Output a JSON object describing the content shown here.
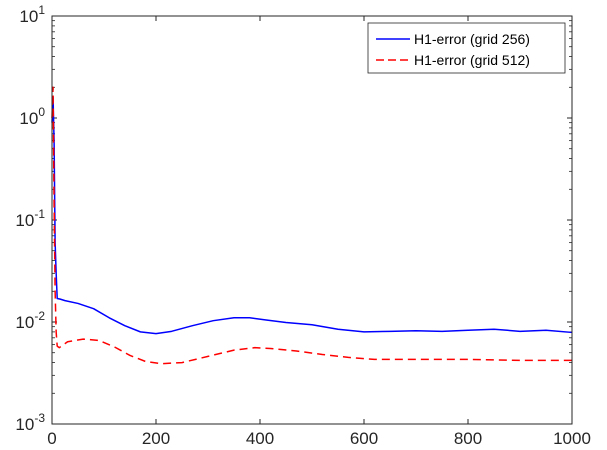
{
  "chart_data": {
    "type": "line",
    "title": "",
    "xlabel": "",
    "ylabel": "",
    "xlim": [
      0,
      1000
    ],
    "ylim": [
      0.001,
      10
    ],
    "yscale": "log",
    "grid": false,
    "legend_position": "top-right",
    "x_ticks": [
      {
        "value": 0,
        "label": "0"
      },
      {
        "value": 200,
        "label": "200"
      },
      {
        "value": 400,
        "label": "400"
      },
      {
        "value": 600,
        "label": "600"
      },
      {
        "value": 800,
        "label": "800"
      },
      {
        "value": 1000,
        "label": "1000"
      }
    ],
    "y_ticks": [
      {
        "value": 0.001,
        "base": "10",
        "exp": "-3"
      },
      {
        "value": 0.01,
        "base": "10",
        "exp": "-2"
      },
      {
        "value": 0.1,
        "base": "10",
        "exp": "-1"
      },
      {
        "value": 1,
        "base": "10",
        "exp": "0"
      },
      {
        "value": 10,
        "base": "10",
        "exp": "1"
      }
    ],
    "series": [
      {
        "name": "H1-error (grid 256)",
        "color": "#0000ff",
        "style": "solid",
        "x": [
          0,
          2,
          4,
          6,
          8,
          10,
          15,
          25,
          50,
          80,
          110,
          140,
          170,
          200,
          230,
          270,
          310,
          350,
          380,
          410,
          450,
          500,
          550,
          600,
          650,
          700,
          750,
          800,
          850,
          900,
          950,
          1000
        ],
        "y": [
          0.9,
          1.6,
          0.6,
          0.06,
          0.03,
          0.017,
          0.0168,
          0.0162,
          0.0152,
          0.0135,
          0.011,
          0.0092,
          0.008,
          0.0077,
          0.0081,
          0.0092,
          0.0103,
          0.011,
          0.011,
          0.0105,
          0.0099,
          0.0094,
          0.0085,
          0.008,
          0.0081,
          0.0082,
          0.0081,
          0.0083,
          0.0085,
          0.0081,
          0.0083,
          0.0079
        ]
      },
      {
        "name": "H1-error (grid 512)",
        "color": "#ff0000",
        "style": "dashed",
        "x": [
          0,
          2,
          4,
          6,
          8,
          10,
          14,
          30,
          60,
          90,
          120,
          150,
          180,
          210,
          250,
          300,
          350,
          390,
          420,
          470,
          520,
          570,
          620,
          700,
          800,
          900,
          1000
        ],
        "y": [
          1.0,
          2.0,
          0.15,
          0.02,
          0.008,
          0.0058,
          0.0056,
          0.0064,
          0.0068,
          0.0066,
          0.0057,
          0.0047,
          0.0041,
          0.0039,
          0.004,
          0.0046,
          0.0053,
          0.0056,
          0.0055,
          0.0052,
          0.0048,
          0.0045,
          0.0043,
          0.0043,
          0.0043,
          0.0042,
          0.0042
        ]
      }
    ]
  }
}
